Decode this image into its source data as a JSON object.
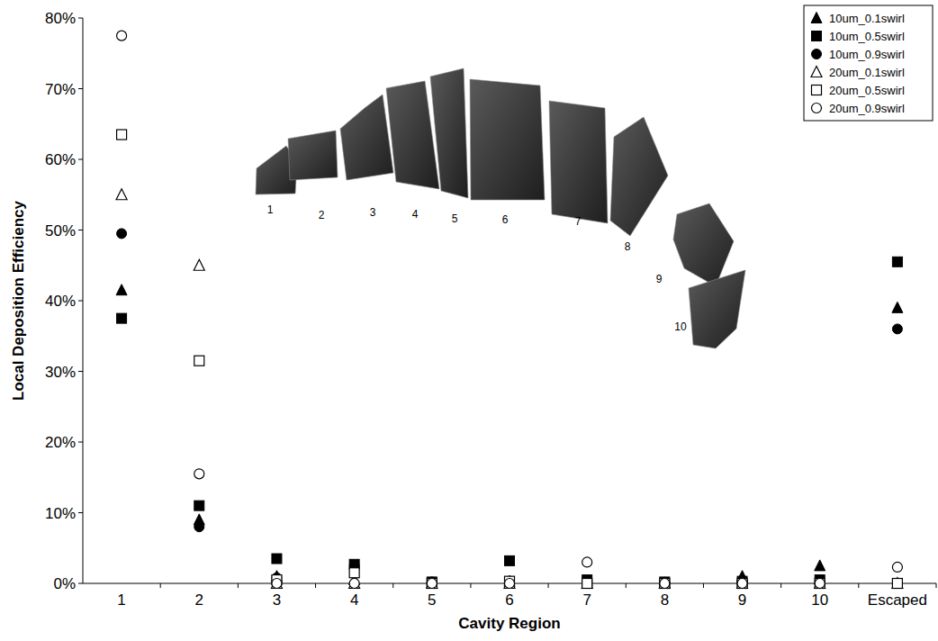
{
  "chart_data": {
    "type": "scatter",
    "x_label": "Cavity Region",
    "y_label": "Local Deposition Efficiency",
    "categories": [
      "1",
      "2",
      "3",
      "4",
      "5",
      "6",
      "7",
      "8",
      "9",
      "10",
      "Escaped"
    ],
    "ylim": [
      0,
      80
    ],
    "yticks": [
      {
        "value": 0,
        "label": "0%"
      },
      {
        "value": 10,
        "label": "10%"
      },
      {
        "value": 20,
        "label": "20%"
      },
      {
        "value": 30,
        "label": "30%"
      },
      {
        "value": 40,
        "label": "40%"
      },
      {
        "value": 50,
        "label": "50%"
      },
      {
        "value": 60,
        "label": "60%"
      },
      {
        "value": 70,
        "label": "70%"
      },
      {
        "value": 80,
        "label": "80%"
      }
    ],
    "grid": false,
    "legend": "top-right",
    "annotations": [
      "1",
      "2",
      "3",
      "4",
      "5",
      "6",
      "7",
      "8",
      "9",
      "10"
    ],
    "series": [
      {
        "name": "10um_0.1swirl",
        "color": "#000000",
        "marker": "triangle",
        "values": [
          41.5,
          9,
          1,
          0.5,
          0,
          0.3,
          0.3,
          0,
          1,
          2.5,
          39
        ]
      },
      {
        "name": "10um_0.5swirl",
        "color": "#000000",
        "marker": "square",
        "values": [
          37.5,
          11,
          3.5,
          2.7,
          0.2,
          3.2,
          0.5,
          0.2,
          0.3,
          0.5,
          45.5
        ]
      },
      {
        "name": "10um_0.9swirl",
        "color": "#000000",
        "marker": "circle",
        "values": [
          49.5,
          8,
          0.8,
          2.5,
          0.2,
          0.3,
          0.3,
          0,
          0.2,
          0.3,
          36
        ]
      },
      {
        "name": "20um_0.1swirl",
        "color": "#000000",
        "marker": "triangle-open",
        "values": [
          55,
          45,
          0,
          0,
          0,
          0,
          0,
          0,
          0,
          0,
          0
        ]
      },
      {
        "name": "20um_0.5swirl",
        "color": "#000000",
        "marker": "square-open",
        "values": [
          63.5,
          31.5,
          0.5,
          1.5,
          0,
          0.3,
          0,
          0,
          0,
          0,
          0
        ]
      },
      {
        "name": "20um_0.9swirl",
        "color": "#000000",
        "marker": "circle-open",
        "values": [
          77.5,
          15.5,
          0,
          0,
          0,
          0,
          3,
          0,
          0,
          0,
          2.3
        ]
      }
    ]
  }
}
